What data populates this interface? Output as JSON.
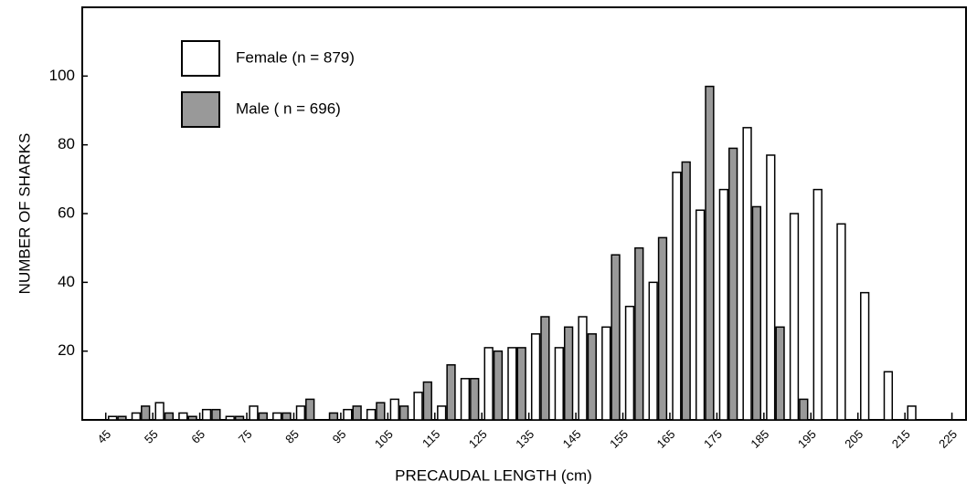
{
  "chart_data": {
    "type": "histogram",
    "x_label": "PRECAUDAL LENGTH (cm)",
    "y_label": "NUMBER OF SHARKS",
    "bins": [
      45,
      50,
      55,
      60,
      65,
      70,
      75,
      80,
      85,
      90,
      95,
      100,
      105,
      110,
      115,
      120,
      125,
      130,
      135,
      140,
      145,
      150,
      155,
      160,
      165,
      170,
      175,
      180,
      185,
      190,
      195,
      200,
      205,
      210,
      215,
      220
    ],
    "series": [
      {
        "name": "Female (n = 879)",
        "color": "#ffffff",
        "values": [
          1,
          2,
          5,
          2,
          3,
          1,
          4,
          2,
          4,
          0,
          3,
          3,
          6,
          8,
          4,
          12,
          21,
          21,
          25,
          21,
          30,
          27,
          33,
          40,
          72,
          61,
          67,
          85,
          77,
          60,
          67,
          57,
          37,
          14,
          4
        ]
      },
      {
        "name": "Male ( n = 696)",
        "color": "#999999",
        "values": [
          1,
          4,
          2,
          1,
          3,
          1,
          2,
          2,
          6,
          2,
          4,
          5,
          4,
          11,
          16,
          12,
          20,
          21,
          30,
          27,
          25,
          48,
          50,
          53,
          75,
          97,
          79,
          62,
          27,
          6,
          0,
          0,
          0,
          0,
          0
        ]
      }
    ],
    "xlim": [
      40,
      228
    ],
    "xticks": [
      45,
      55,
      65,
      75,
      85,
      95,
      105,
      115,
      125,
      135,
      145,
      155,
      165,
      175,
      185,
      195,
      205,
      215,
      225
    ],
    "ylim": [
      0,
      120
    ],
    "yticks": [
      20,
      40,
      60,
      80,
      100
    ],
    "legend": "upper left"
  }
}
